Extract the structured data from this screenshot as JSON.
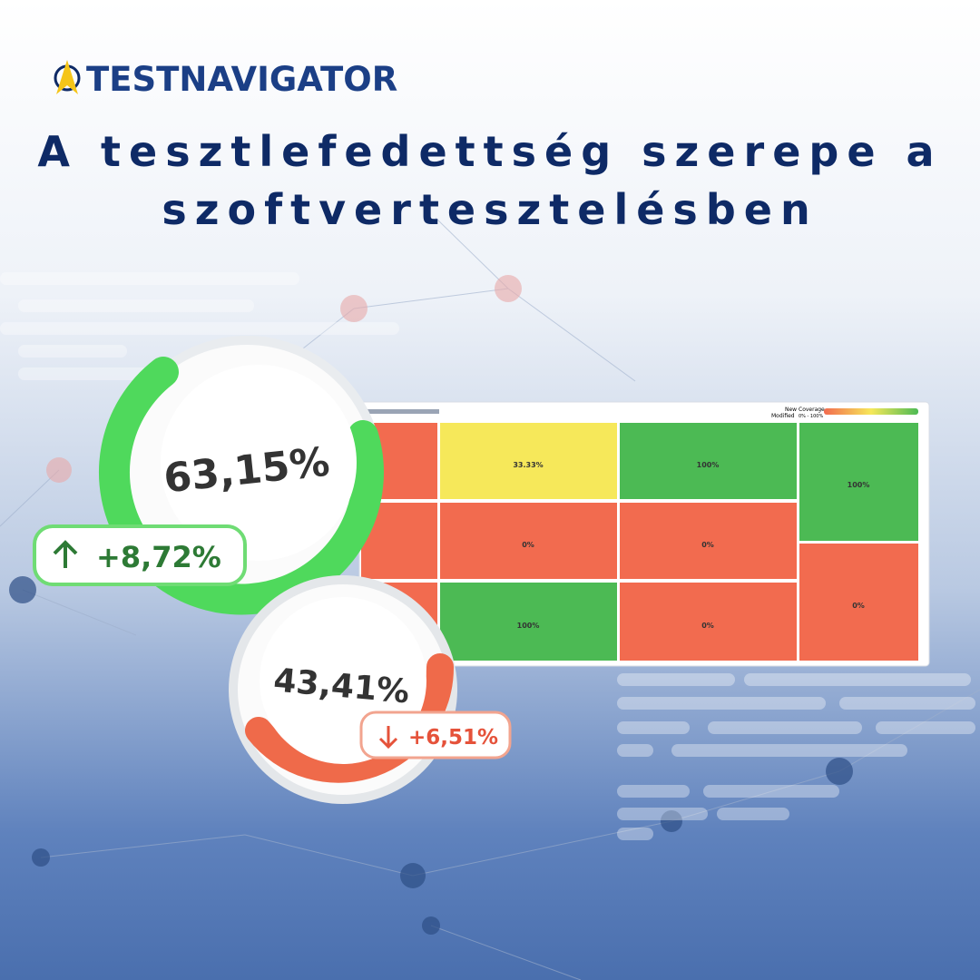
{
  "header": {
    "brand": "TESTNAVIGATOR",
    "title_lines": [
      "A tesztlefedettség szerepe a",
      "szoftvertesztelésben"
    ]
  },
  "gauges": [
    {
      "value": "63,15%",
      "change": "+8,72%"
    },
    {
      "value": "43,41%",
      "change": "+6,51%"
    }
  ],
  "treemap": {
    "legend": {
      "new": "New",
      "modified": "Modified",
      "coverage": "Coverage",
      "range": "0% - 100%"
    },
    "cells": [
      "33.33%",
      "0%",
      "100%",
      "100%",
      "0%",
      "0%",
      "100%",
      "0%"
    ]
  }
}
